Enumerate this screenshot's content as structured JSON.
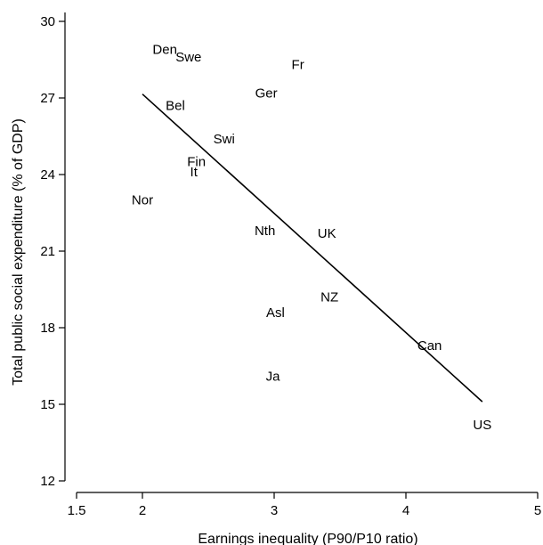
{
  "chart_data": {
    "type": "scatter",
    "xlabel": "Earnings inequality (P90/P10 ratio)",
    "ylabel": "Total public social expenditure (% of GDP)",
    "xlim": [
      1.5,
      5
    ],
    "ylim": [
      12,
      30
    ],
    "xticks": [
      1.5,
      2,
      3,
      4,
      5
    ],
    "xtick_labels": [
      "1.5",
      "2",
      "3",
      "4",
      "5"
    ],
    "yticks": [
      12,
      15,
      18,
      21,
      24,
      27,
      30
    ],
    "ytick_labels": [
      "12",
      "15",
      "18",
      "21",
      "24",
      "27",
      "30"
    ],
    "grid": false,
    "points": [
      {
        "label": "Den",
        "x": 2.17,
        "y": 28.9
      },
      {
        "label": "Swe",
        "x": 2.35,
        "y": 28.6
      },
      {
        "label": "Fr",
        "x": 3.18,
        "y": 28.3
      },
      {
        "label": "Ger",
        "x": 2.94,
        "y": 27.2
      },
      {
        "label": "Bel",
        "x": 2.25,
        "y": 26.7
      },
      {
        "label": "Swi",
        "x": 2.62,
        "y": 25.4
      },
      {
        "label": "Fin",
        "x": 2.41,
        "y": 24.5
      },
      {
        "label": "It",
        "x": 2.39,
        "y": 24.1
      },
      {
        "label": "Nor",
        "x": 2.0,
        "y": 23.0
      },
      {
        "label": "Nth",
        "x": 2.93,
        "y": 21.8
      },
      {
        "label": "UK",
        "x": 3.4,
        "y": 21.7
      },
      {
        "label": "NZ",
        "x": 3.42,
        "y": 19.2
      },
      {
        "label": "Asl",
        "x": 3.01,
        "y": 18.6
      },
      {
        "label": "Can",
        "x": 4.18,
        "y": 17.3
      },
      {
        "label": "Ja",
        "x": 2.99,
        "y": 16.1
      },
      {
        "label": "US",
        "x": 4.58,
        "y": 14.2
      }
    ],
    "fit_line": {
      "x": [
        2.0,
        4.58
      ],
      "y": [
        27.15,
        15.1
      ]
    }
  }
}
